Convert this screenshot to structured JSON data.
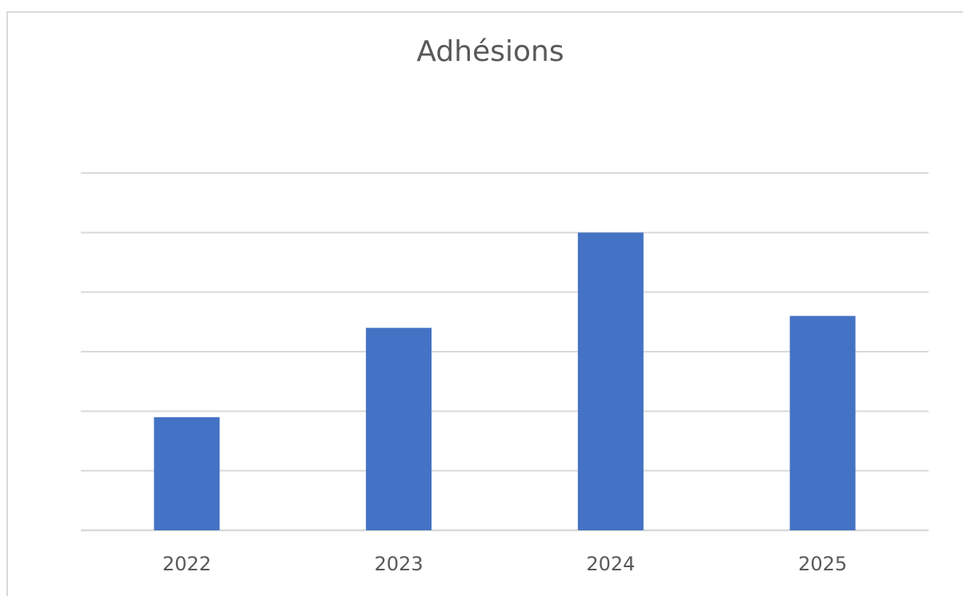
{
  "chart_data": {
    "type": "bar",
    "title": "Adhésions",
    "xlabel": "",
    "ylabel": "",
    "categories": [
      "2022",
      "2023",
      "2024",
      "2025"
    ],
    "values": [
      1.9,
      3.4,
      5.0,
      3.6
    ],
    "ylim": [
      0,
      6
    ],
    "y_tick_labels_visible": false,
    "grid": true,
    "legend": "none",
    "bar_color": "#4472C4",
    "grid_color": "#d9d9d9",
    "text_color": "#595959"
  }
}
